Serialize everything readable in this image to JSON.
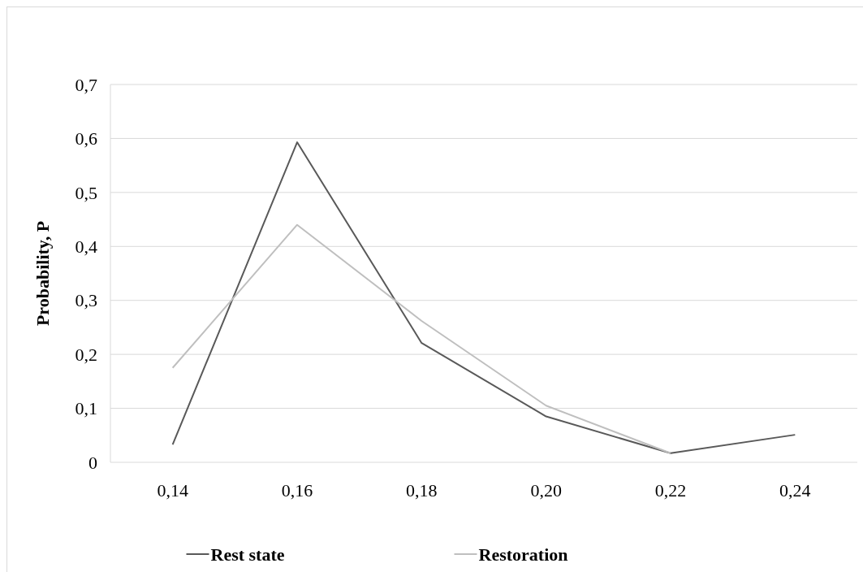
{
  "chart_data": {
    "type": "line",
    "ylabel": "Probability,  P",
    "categories": [
      "0,14",
      "0,16",
      "0,18",
      "0,20",
      "0,22",
      "0,24"
    ],
    "series": [
      {
        "name": "Rest state",
        "color": "#595959",
        "values": [
          0.033,
          0.593,
          0.221,
          0.085,
          0.017,
          0.051
        ]
      },
      {
        "name": "Restoration",
        "color": "#bfbfbf",
        "values": [
          0.175,
          0.44,
          0.262,
          0.105,
          0.017,
          null
        ]
      }
    ],
    "ylim": [
      0,
      0.7
    ],
    "yticks": [
      0,
      {
        "value": 0.1,
        "label": "0,1"
      },
      {
        "value": 0.2,
        "label": "0,2"
      },
      {
        "value": 0.3,
        "label": "0,3"
      },
      {
        "value": 0.4,
        "label": "0,4"
      },
      {
        "value": 0.5,
        "label": "0,5"
      },
      {
        "value": 0.6,
        "label": "0,6"
      },
      {
        "value": 0.7,
        "label": "0,7"
      }
    ],
    "grid": "y",
    "legend": "bottom",
    "marker": "none",
    "line_style": "solid"
  }
}
